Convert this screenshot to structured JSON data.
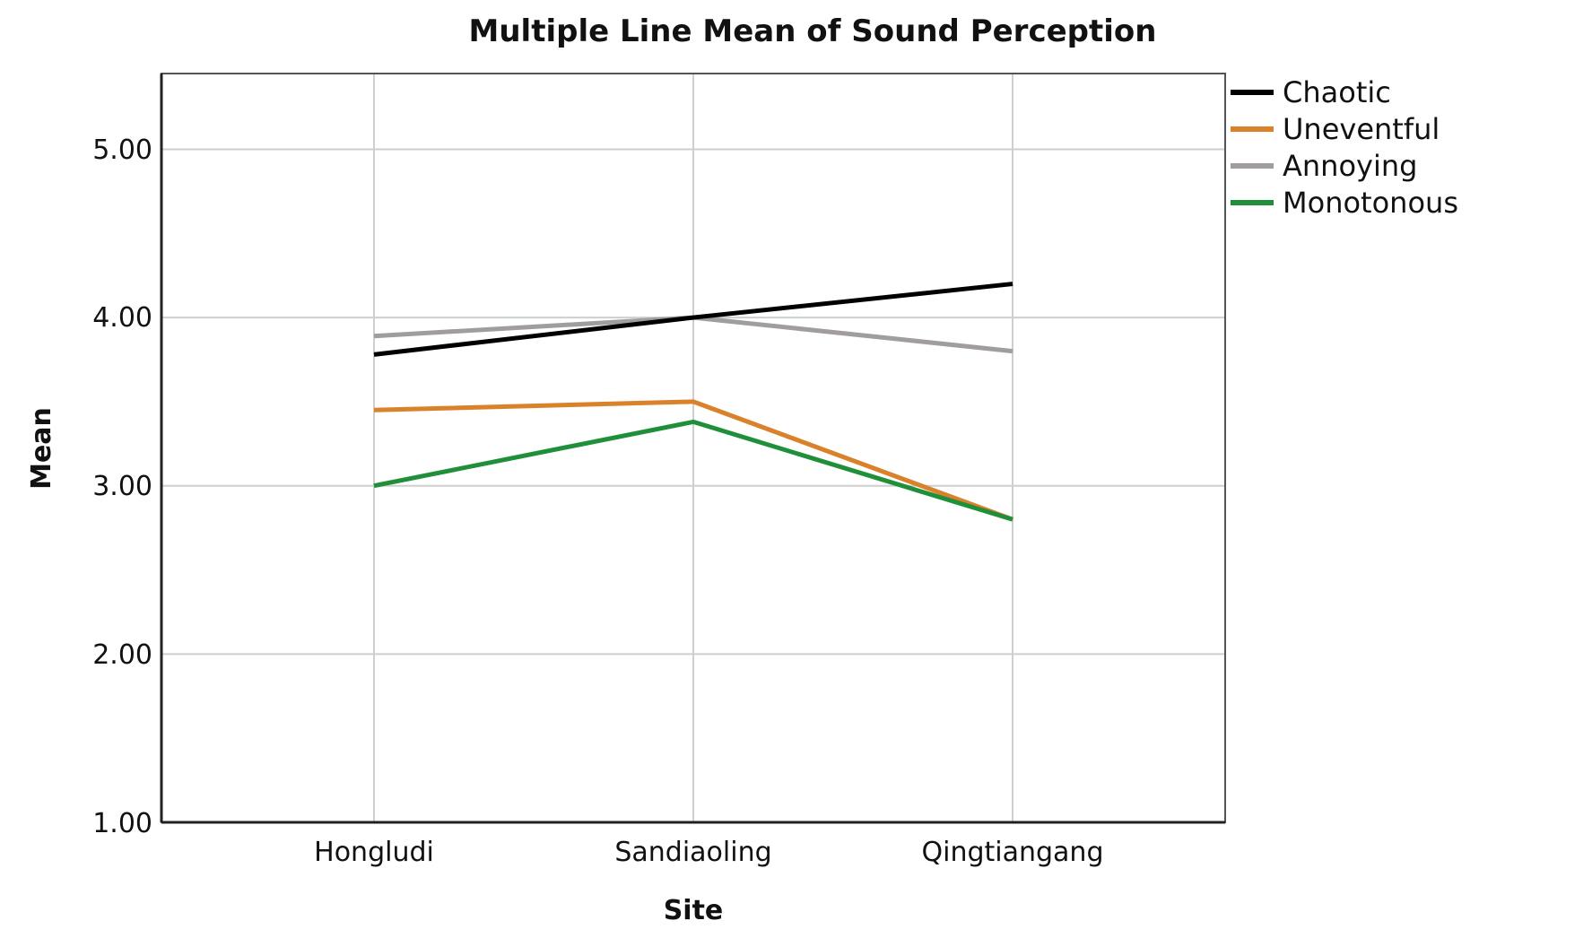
{
  "chart_data": {
    "type": "line",
    "title": "Multiple Line Mean of Sound Perception",
    "xlabel": "Site",
    "ylabel": "Mean",
    "categories": [
      "Hongludi",
      "Sandiaoling",
      "Qingtiangang"
    ],
    "ylim": [
      1.0,
      5.45
    ],
    "yticks": [
      "1.00",
      "2.00",
      "3.00",
      "4.00",
      "5.00"
    ],
    "ytick_values": [
      1,
      2,
      3,
      4,
      5
    ],
    "grid": true,
    "legend_position": "top-right outside",
    "series": [
      {
        "name": "Chaotic",
        "color": "#000000",
        "values": [
          3.78,
          4.0,
          4.2
        ]
      },
      {
        "name": "Uneventful",
        "color": "#d9822b",
        "values": [
          3.45,
          3.5,
          2.8
        ]
      },
      {
        "name": "Annoying",
        "color": "#a09ca0",
        "values": [
          3.89,
          4.0,
          3.8
        ]
      },
      {
        "name": "Monotonous",
        "color": "#1f8f3a",
        "values": [
          3.0,
          3.38,
          2.8
        ]
      }
    ]
  }
}
